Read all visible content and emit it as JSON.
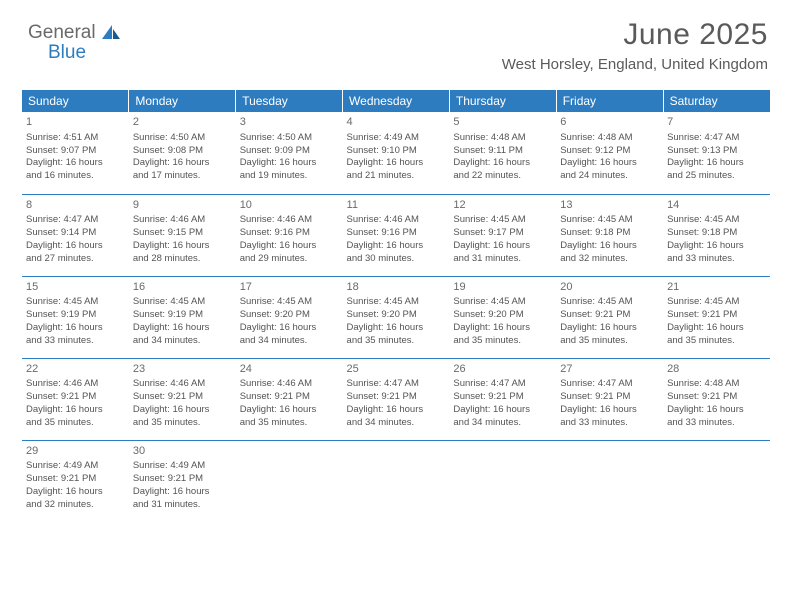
{
  "logo": {
    "part1": "General",
    "part2": "Blue"
  },
  "header": {
    "month_title": "June 2025",
    "location": "West Horsley, England, United Kingdom"
  },
  "colors": {
    "header_bg": "#2d7cc0",
    "header_text": "#ffffff",
    "row_divider": "#2d7cc0",
    "body_text": "#545454",
    "title_text": "#5a5a5a",
    "logo_gray": "#6a6a6a",
    "logo_blue": "#2d7cc0",
    "page_bg": "#ffffff"
  },
  "typography": {
    "title_fontsize": 30,
    "location_fontsize": 15,
    "weekday_fontsize": 12,
    "daynum_fontsize": 11,
    "cell_fontsize": 9.5
  },
  "weekdays": [
    "Sunday",
    "Monday",
    "Tuesday",
    "Wednesday",
    "Thursday",
    "Friday",
    "Saturday"
  ],
  "weeks": [
    [
      {
        "n": "1",
        "sr": "Sunrise: 4:51 AM",
        "ss": "Sunset: 9:07 PM",
        "dl1": "Daylight: 16 hours",
        "dl2": "and 16 minutes."
      },
      {
        "n": "2",
        "sr": "Sunrise: 4:50 AM",
        "ss": "Sunset: 9:08 PM",
        "dl1": "Daylight: 16 hours",
        "dl2": "and 17 minutes."
      },
      {
        "n": "3",
        "sr": "Sunrise: 4:50 AM",
        "ss": "Sunset: 9:09 PM",
        "dl1": "Daylight: 16 hours",
        "dl2": "and 19 minutes."
      },
      {
        "n": "4",
        "sr": "Sunrise: 4:49 AM",
        "ss": "Sunset: 9:10 PM",
        "dl1": "Daylight: 16 hours",
        "dl2": "and 21 minutes."
      },
      {
        "n": "5",
        "sr": "Sunrise: 4:48 AM",
        "ss": "Sunset: 9:11 PM",
        "dl1": "Daylight: 16 hours",
        "dl2": "and 22 minutes."
      },
      {
        "n": "6",
        "sr": "Sunrise: 4:48 AM",
        "ss": "Sunset: 9:12 PM",
        "dl1": "Daylight: 16 hours",
        "dl2": "and 24 minutes."
      },
      {
        "n": "7",
        "sr": "Sunrise: 4:47 AM",
        "ss": "Sunset: 9:13 PM",
        "dl1": "Daylight: 16 hours",
        "dl2": "and 25 minutes."
      }
    ],
    [
      {
        "n": "8",
        "sr": "Sunrise: 4:47 AM",
        "ss": "Sunset: 9:14 PM",
        "dl1": "Daylight: 16 hours",
        "dl2": "and 27 minutes."
      },
      {
        "n": "9",
        "sr": "Sunrise: 4:46 AM",
        "ss": "Sunset: 9:15 PM",
        "dl1": "Daylight: 16 hours",
        "dl2": "and 28 minutes."
      },
      {
        "n": "10",
        "sr": "Sunrise: 4:46 AM",
        "ss": "Sunset: 9:16 PM",
        "dl1": "Daylight: 16 hours",
        "dl2": "and 29 minutes."
      },
      {
        "n": "11",
        "sr": "Sunrise: 4:46 AM",
        "ss": "Sunset: 9:16 PM",
        "dl1": "Daylight: 16 hours",
        "dl2": "and 30 minutes."
      },
      {
        "n": "12",
        "sr": "Sunrise: 4:45 AM",
        "ss": "Sunset: 9:17 PM",
        "dl1": "Daylight: 16 hours",
        "dl2": "and 31 minutes."
      },
      {
        "n": "13",
        "sr": "Sunrise: 4:45 AM",
        "ss": "Sunset: 9:18 PM",
        "dl1": "Daylight: 16 hours",
        "dl2": "and 32 minutes."
      },
      {
        "n": "14",
        "sr": "Sunrise: 4:45 AM",
        "ss": "Sunset: 9:18 PM",
        "dl1": "Daylight: 16 hours",
        "dl2": "and 33 minutes."
      }
    ],
    [
      {
        "n": "15",
        "sr": "Sunrise: 4:45 AM",
        "ss": "Sunset: 9:19 PM",
        "dl1": "Daylight: 16 hours",
        "dl2": "and 33 minutes."
      },
      {
        "n": "16",
        "sr": "Sunrise: 4:45 AM",
        "ss": "Sunset: 9:19 PM",
        "dl1": "Daylight: 16 hours",
        "dl2": "and 34 minutes."
      },
      {
        "n": "17",
        "sr": "Sunrise: 4:45 AM",
        "ss": "Sunset: 9:20 PM",
        "dl1": "Daylight: 16 hours",
        "dl2": "and 34 minutes."
      },
      {
        "n": "18",
        "sr": "Sunrise: 4:45 AM",
        "ss": "Sunset: 9:20 PM",
        "dl1": "Daylight: 16 hours",
        "dl2": "and 35 minutes."
      },
      {
        "n": "19",
        "sr": "Sunrise: 4:45 AM",
        "ss": "Sunset: 9:20 PM",
        "dl1": "Daylight: 16 hours",
        "dl2": "and 35 minutes."
      },
      {
        "n": "20",
        "sr": "Sunrise: 4:45 AM",
        "ss": "Sunset: 9:21 PM",
        "dl1": "Daylight: 16 hours",
        "dl2": "and 35 minutes."
      },
      {
        "n": "21",
        "sr": "Sunrise: 4:45 AM",
        "ss": "Sunset: 9:21 PM",
        "dl1": "Daylight: 16 hours",
        "dl2": "and 35 minutes."
      }
    ],
    [
      {
        "n": "22",
        "sr": "Sunrise: 4:46 AM",
        "ss": "Sunset: 9:21 PM",
        "dl1": "Daylight: 16 hours",
        "dl2": "and 35 minutes."
      },
      {
        "n": "23",
        "sr": "Sunrise: 4:46 AM",
        "ss": "Sunset: 9:21 PM",
        "dl1": "Daylight: 16 hours",
        "dl2": "and 35 minutes."
      },
      {
        "n": "24",
        "sr": "Sunrise: 4:46 AM",
        "ss": "Sunset: 9:21 PM",
        "dl1": "Daylight: 16 hours",
        "dl2": "and 35 minutes."
      },
      {
        "n": "25",
        "sr": "Sunrise: 4:47 AM",
        "ss": "Sunset: 9:21 PM",
        "dl1": "Daylight: 16 hours",
        "dl2": "and 34 minutes."
      },
      {
        "n": "26",
        "sr": "Sunrise: 4:47 AM",
        "ss": "Sunset: 9:21 PM",
        "dl1": "Daylight: 16 hours",
        "dl2": "and 34 minutes."
      },
      {
        "n": "27",
        "sr": "Sunrise: 4:47 AM",
        "ss": "Sunset: 9:21 PM",
        "dl1": "Daylight: 16 hours",
        "dl2": "and 33 minutes."
      },
      {
        "n": "28",
        "sr": "Sunrise: 4:48 AM",
        "ss": "Sunset: 9:21 PM",
        "dl1": "Daylight: 16 hours",
        "dl2": "and 33 minutes."
      }
    ],
    [
      {
        "n": "29",
        "sr": "Sunrise: 4:49 AM",
        "ss": "Sunset: 9:21 PM",
        "dl1": "Daylight: 16 hours",
        "dl2": "and 32 minutes."
      },
      {
        "n": "30",
        "sr": "Sunrise: 4:49 AM",
        "ss": "Sunset: 9:21 PM",
        "dl1": "Daylight: 16 hours",
        "dl2": "and 31 minutes."
      },
      null,
      null,
      null,
      null,
      null
    ]
  ]
}
